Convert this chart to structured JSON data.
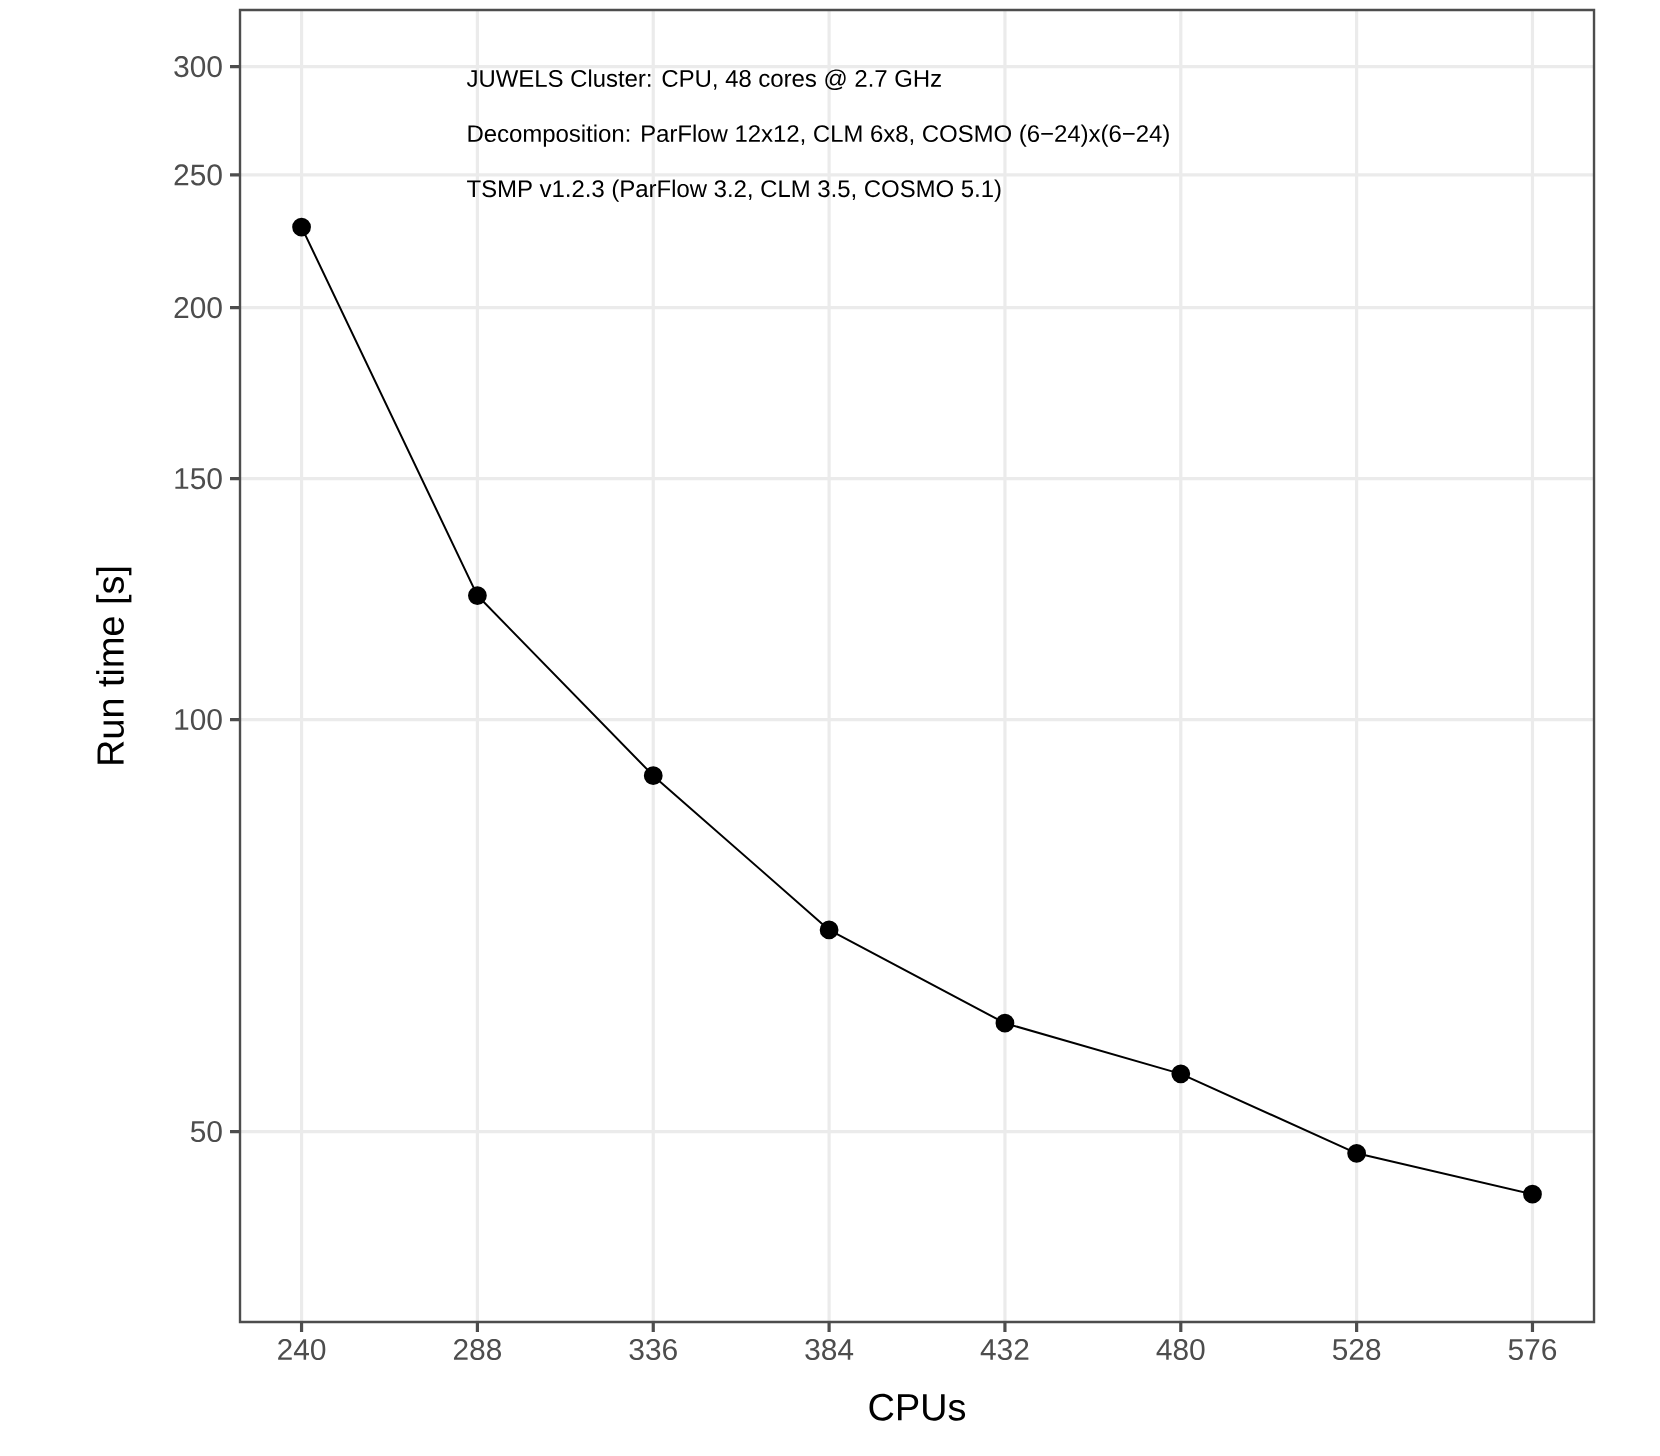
{
  "chart_data": {
    "type": "line",
    "xlabel": "CPUs",
    "ylabel": "Run time [s]",
    "x": [
      240,
      288,
      336,
      384,
      432,
      480,
      528,
      576
    ],
    "series": [
      {
        "color": "#000000",
        "values": [
          229,
          123.2,
          91,
          70.2,
          60,
          55.1,
          48.2,
          45
        ]
      }
    ],
    "xlim": [
      223.2,
      592.8
    ],
    "ylim": [
      36.3,
      330
    ],
    "xticks": [
      240,
      288,
      336,
      384,
      432,
      480,
      528,
      576
    ],
    "yticks": [
      50,
      100,
      150,
      200,
      250,
      300
    ],
    "log": "y",
    "grid": true,
    "marker": "circle",
    "line_style": "solid",
    "annotations": [
      "JUWELS Cluster: CPU, 48 cores @ 2.7 GHz",
      "Decomposition: ParFlow 12x12, CLM 6x8, COSMO (6−24)x(6−24)",
      "TSMP v1.2.3 (ParFlow 3.2, CLM 3.5, COSMO 5.1)"
    ]
  }
}
